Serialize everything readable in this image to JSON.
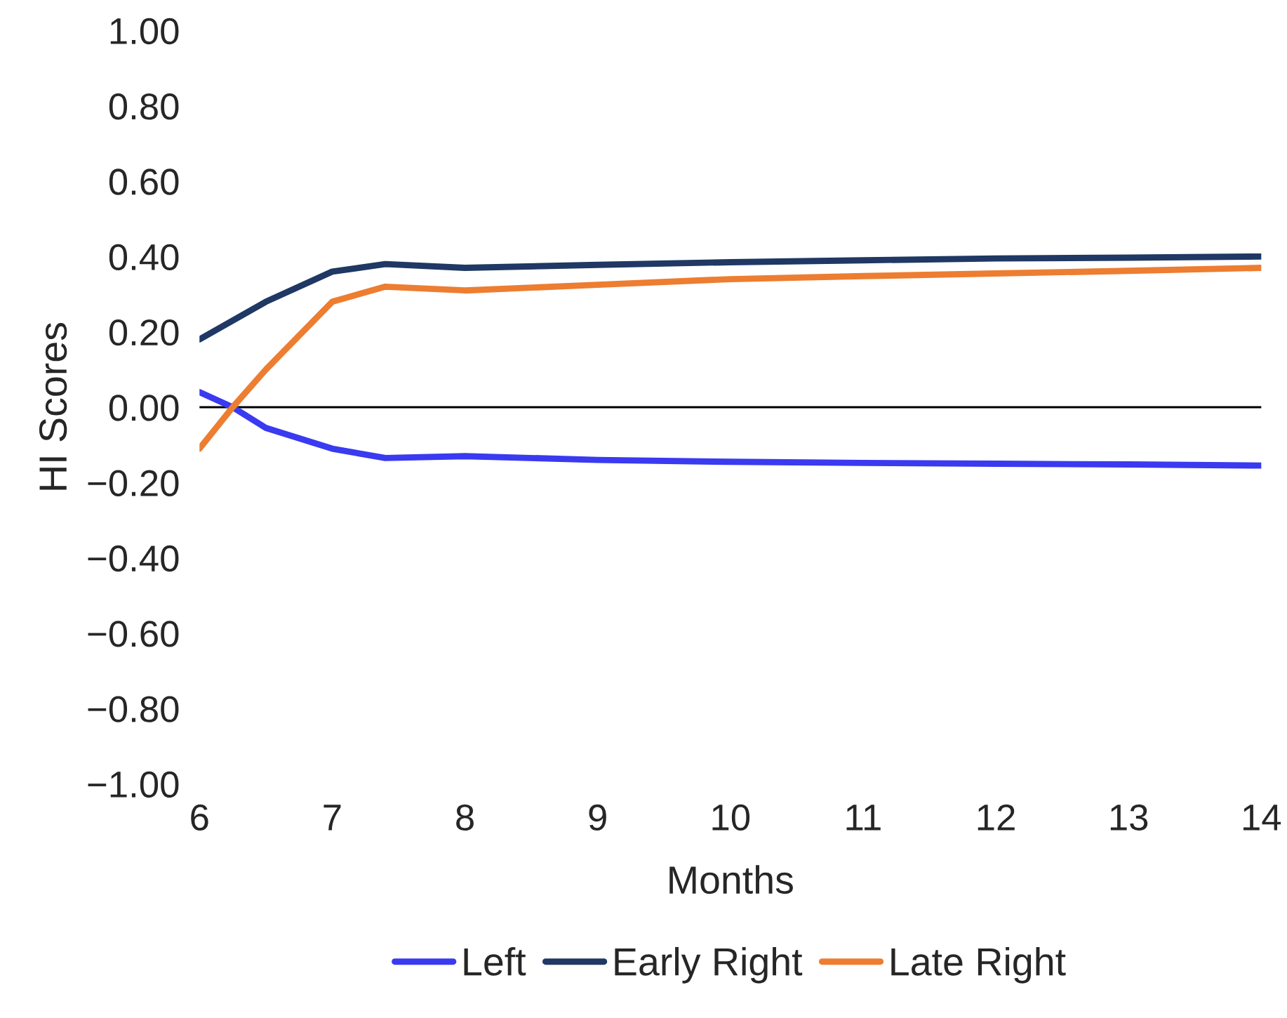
{
  "chart_data": {
    "type": "line",
    "xlabel": "Months",
    "ylabel": "HI Scores",
    "xlim": [
      6,
      14
    ],
    "xticks": [
      6,
      7,
      8,
      9,
      10,
      11,
      12,
      13,
      14
    ],
    "ylim": [
      -1,
      1
    ],
    "yticks": [
      {
        "value": -1,
        "label": "−1.00"
      },
      {
        "value": -0.8,
        "label": "−0.80"
      },
      {
        "value": -0.6,
        "label": "−0.60"
      },
      {
        "value": -0.4,
        "label": "−0.40"
      },
      {
        "value": -0.2,
        "label": "−0.20"
      },
      {
        "value": 0,
        "label": "0.00"
      },
      {
        "value": 0.2,
        "label": "0.20"
      },
      {
        "value": 0.4,
        "label": "0.40"
      },
      {
        "value": 0.6,
        "label": "0.60"
      },
      {
        "value": 0.8,
        "label": "0.80"
      },
      {
        "value": 1,
        "label": "1.00"
      }
    ],
    "x": [
      6,
      6.25,
      6.5,
      7,
      7.4,
      8,
      9,
      10,
      11,
      12,
      13,
      14
    ],
    "series": [
      {
        "name": "Left",
        "color": "#3a3af0",
        "values": [
          0.04,
          0.0,
          -0.055,
          -0.11,
          -0.135,
          -0.13,
          -0.14,
          -0.145,
          -0.148,
          -0.15,
          -0.152,
          -0.155
        ]
      },
      {
        "name": "Early Right",
        "color": "#1f3864",
        "values": [
          0.18,
          0.23,
          0.28,
          0.36,
          0.38,
          0.37,
          0.378,
          0.385,
          0.39,
          0.395,
          0.397,
          0.4
        ]
      },
      {
        "name": "Late Right",
        "color": "#ed7d31",
        "values": [
          -0.11,
          0.0,
          0.1,
          0.28,
          0.32,
          0.31,
          0.325,
          0.34,
          0.348,
          0.355,
          0.362,
          0.37
        ]
      }
    ],
    "ref_lines": [
      {
        "axis": "y",
        "value": 0,
        "color": "#000000"
      }
    ],
    "grid": false,
    "legend": "bottom",
    "line_style": "solid",
    "marker": "none"
  }
}
